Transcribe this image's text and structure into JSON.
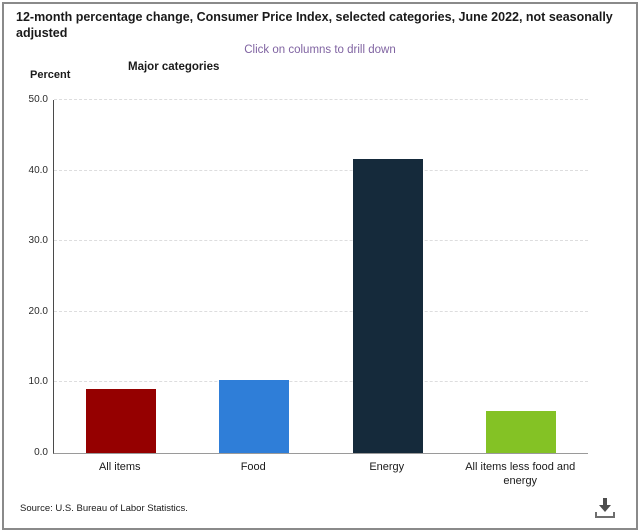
{
  "header": {
    "title": "12-month percentage change, Consumer Price Index, selected categories, June 2022, not seasonally adjusted",
    "subtitle": "Click on columns to drill down"
  },
  "axes": {
    "percent_label": "Percent",
    "x_axis_title": "Major categories"
  },
  "footer": {
    "source": "Source: U.S. Bureau of Labor Statistics.",
    "download_icon": "download-icon"
  },
  "colors": {
    "subtitle_purple": "#8064a2",
    "axis_line": "#4a4a4a",
    "baseline": "#9a9a9a",
    "gridline": "#ddddde",
    "frame_border": "#8a8a8a",
    "icon_gray": "#4d4d4d"
  },
  "chart_data": {
    "type": "bar",
    "title": "12-month percentage change, Consumer Price Index, selected categories, June 2022, not seasonally adjusted",
    "xlabel": "Major categories",
    "ylabel": "Percent",
    "categories": [
      "All items",
      "Food",
      "Energy",
      "All items less food and energy"
    ],
    "values": [
      9.1,
      10.4,
      41.6,
      5.9
    ],
    "bar_colors": [
      "#950000",
      "#2f7ed8",
      "#152a3b",
      "#84c225"
    ],
    "ylim": [
      0,
      50
    ],
    "ytick_interval": 10,
    "ytick_labels": [
      "0.0",
      "10.0",
      "20.0",
      "30.0",
      "40.0",
      "50.0"
    ],
    "grid": "horizontal-dashed",
    "legend": "none"
  }
}
